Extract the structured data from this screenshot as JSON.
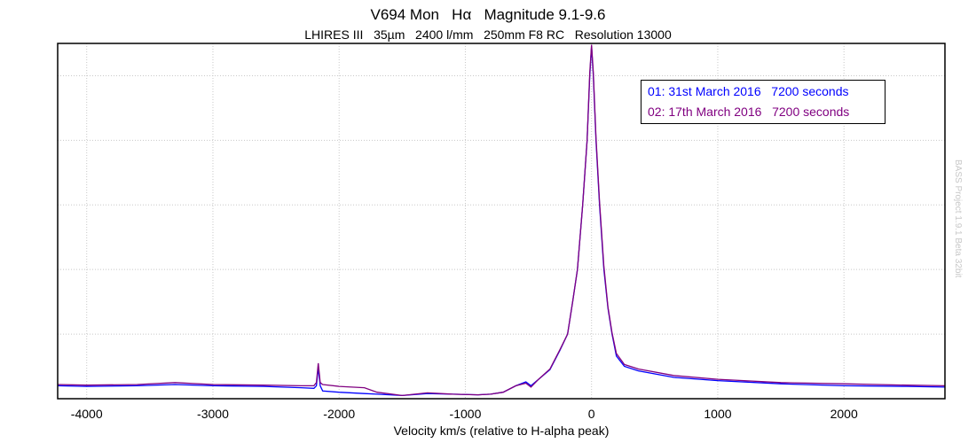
{
  "chart_data": {
    "type": "line",
    "title": "V694 Mon   Hα   Magnitude 9.1-9.6",
    "subtitle": "LHIRES III   35µm   2400 l/mm   250mm F8 RC   Resolution 13000",
    "xlabel": "Velocity km/s (relative to H-alpha peak)",
    "ylabel": "",
    "xlim": [
      -4230,
      2800
    ],
    "ylim": [
      0,
      5.5
    ],
    "xticks": [
      -4000,
      -3000,
      -2000,
      -1000,
      0,
      1000,
      2000
    ],
    "yticks_unlabeled": [
      1,
      2,
      3,
      4,
      5
    ],
    "grid": true,
    "legend_position": "top-right",
    "watermark": "BASS Project 1.9.1 Beta 32bit",
    "series": [
      {
        "name": "01: 31st March 2016   7200 seconds",
        "color": "#0000ff",
        "x": [
          -4230,
          -4000,
          -3600,
          -3300,
          -3000,
          -2600,
          -2300,
          -2200,
          -2180,
          -2165,
          -2150,
          -2130,
          -2000,
          -1800,
          -1700,
          -1500,
          -1300,
          -1100,
          -900,
          -800,
          -700,
          -600,
          -520,
          -480,
          -420,
          -330,
          -250,
          -190,
          -150,
          -112,
          -70,
          -35,
          -14,
          0,
          14,
          35,
          63,
          98,
          130,
          162,
          197,
          260,
          372,
          650,
          1000,
          1500,
          2000,
          2500,
          2800
        ],
        "y": [
          0.2,
          0.19,
          0.2,
          0.22,
          0.2,
          0.19,
          0.17,
          0.16,
          0.2,
          0.48,
          0.2,
          0.12,
          0.1,
          0.08,
          0.07,
          0.05,
          0.08,
          0.07,
          0.06,
          0.07,
          0.1,
          0.2,
          0.26,
          0.2,
          0.3,
          0.45,
          0.75,
          1.0,
          1.5,
          2.0,
          3.0,
          4.0,
          5.0,
          5.45,
          5.0,
          4.0,
          3.0,
          2.0,
          1.4,
          1.0,
          0.66,
          0.5,
          0.43,
          0.33,
          0.28,
          0.23,
          0.2,
          0.19,
          0.18
        ]
      },
      {
        "name": "02: 17th March 2016   7200 seconds",
        "color": "#800080",
        "x": [
          -4230,
          -4000,
          -3600,
          -3300,
          -3000,
          -2600,
          -2300,
          -2200,
          -2180,
          -2165,
          -2150,
          -2130,
          -2000,
          -1800,
          -1700,
          -1500,
          -1300,
          -1100,
          -900,
          -800,
          -700,
          -600,
          -520,
          -480,
          -420,
          -330,
          -250,
          -190,
          -150,
          -112,
          -70,
          -35,
          -14,
          0,
          14,
          35,
          63,
          98,
          130,
          162,
          197,
          260,
          372,
          650,
          1000,
          1500,
          2000,
          2500,
          2800
        ],
        "y": [
          0.22,
          0.21,
          0.22,
          0.25,
          0.22,
          0.21,
          0.2,
          0.2,
          0.25,
          0.55,
          0.25,
          0.22,
          0.19,
          0.17,
          0.1,
          0.05,
          0.09,
          0.07,
          0.06,
          0.07,
          0.1,
          0.2,
          0.24,
          0.18,
          0.3,
          0.46,
          0.76,
          1.0,
          1.5,
          2.0,
          3.0,
          4.0,
          5.05,
          5.48,
          5.05,
          4.05,
          3.05,
          2.05,
          1.42,
          1.02,
          0.7,
          0.53,
          0.46,
          0.36,
          0.3,
          0.25,
          0.23,
          0.21,
          0.2
        ]
      }
    ]
  }
}
